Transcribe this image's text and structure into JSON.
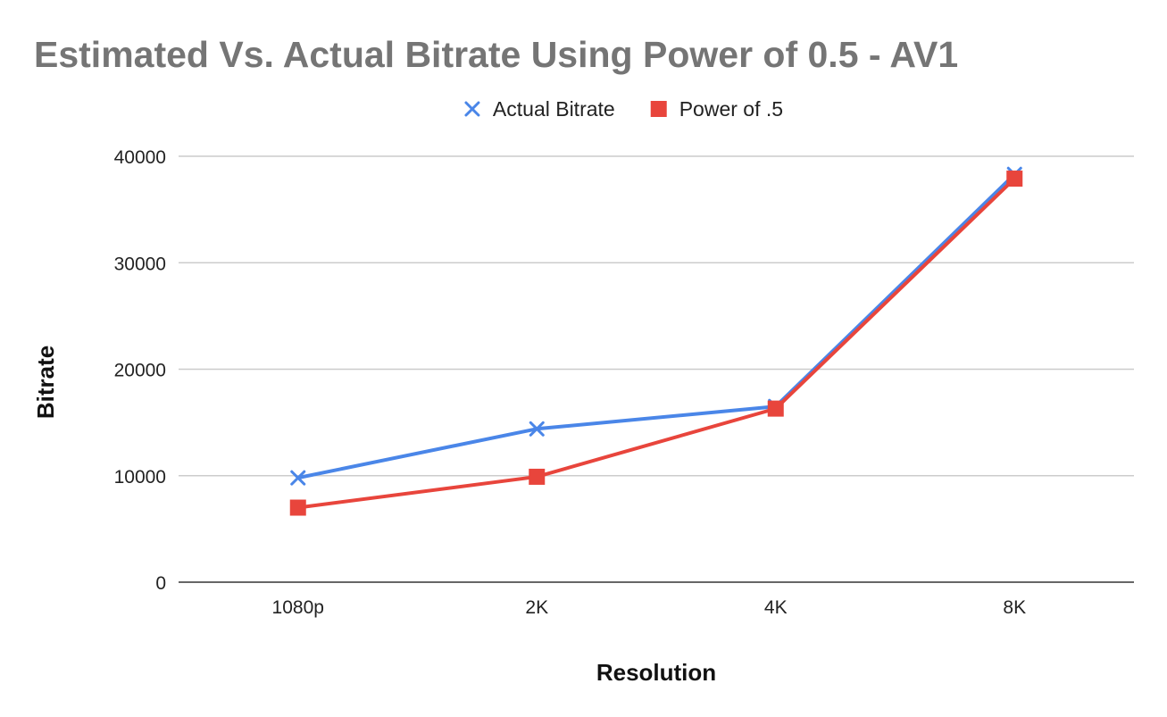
{
  "chart_data": {
    "type": "line",
    "title": "Estimated Vs. Actual Bitrate Using Power of 0.5 - AV1",
    "xlabel": "Resolution",
    "ylabel": "Bitrate",
    "categories": [
      "1080p",
      "2K",
      "4K",
      "8K"
    ],
    "ylim": [
      0,
      40000
    ],
    "yticks": [
      0,
      10000,
      20000,
      30000,
      40000
    ],
    "ytick_labels": [
      "0",
      "10000",
      "20000",
      "30000",
      "40000"
    ],
    "grid": true,
    "legend": "top-center",
    "series": [
      {
        "name": "Actual Bitrate",
        "marker": "x",
        "color": "#4a86e8",
        "values": [
          9800,
          14400,
          16500,
          38300
        ]
      },
      {
        "name": "Power of .5",
        "marker": "square",
        "color": "#e8453c",
        "values": [
          7000,
          9900,
          16300,
          37900
        ]
      }
    ]
  }
}
